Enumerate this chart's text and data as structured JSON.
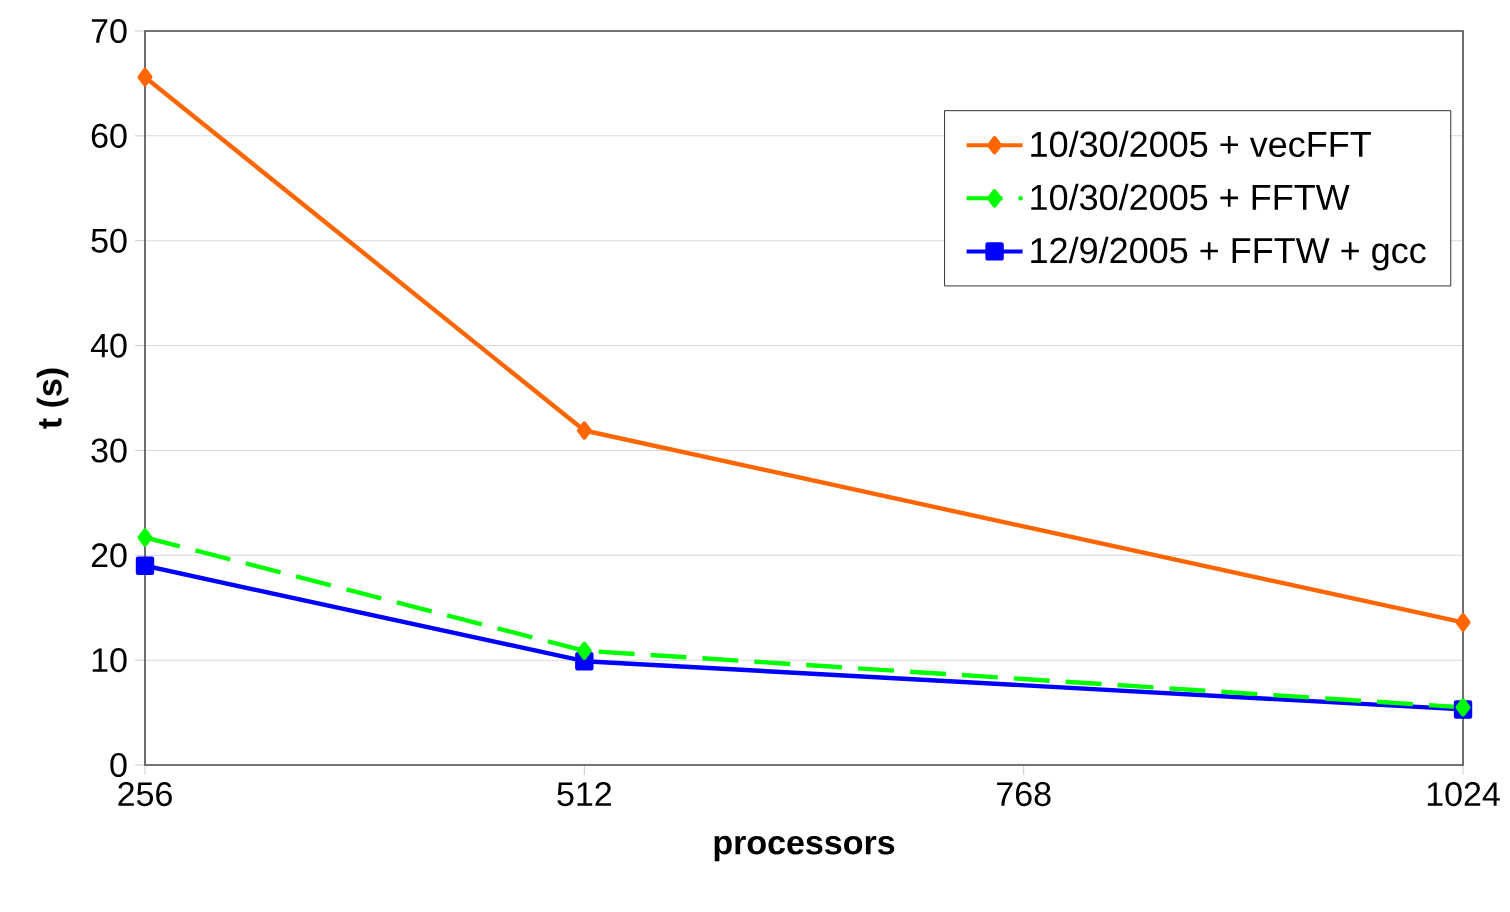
{
  "chart_data": {
    "type": "line",
    "xlabel": "processors",
    "ylabel": "t (s)",
    "x": [
      256,
      512,
      1024
    ],
    "series": [
      {
        "name": "10/30/2005 + vecFFT",
        "color": "#ff6600",
        "values": [
          65.6,
          31.9,
          13.6
        ],
        "marker": "diamond",
        "line_style": "solid"
      },
      {
        "name": "10/30/2005 + FFTW",
        "color": "#00ff00",
        "values": [
          21.7,
          10.9,
          5.5
        ],
        "marker": "diamond",
        "line_style": "dashed"
      },
      {
        "name": "12/9/2005 + FFTW + gcc",
        "color": "#0000ff",
        "values": [
          19.0,
          9.9,
          5.3
        ],
        "marker": "square",
        "line_style": "solid"
      }
    ],
    "xlim": [
      256,
      1024
    ],
    "ylim": [
      0,
      70
    ],
    "xticks": [
      256,
      512,
      768,
      1024
    ],
    "yticks": [
      0,
      10,
      20,
      30,
      40,
      50,
      60,
      70
    ],
    "grid": "y",
    "legend": "top right"
  }
}
